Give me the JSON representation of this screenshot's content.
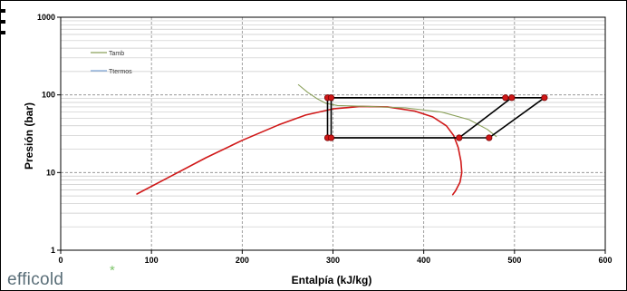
{
  "chart_data": {
    "type": "line",
    "title": "",
    "xlabel": "Entalpía  (kJ/kg)",
    "ylabel": "Presión  (bar)",
    "xlim": [
      0,
      600
    ],
    "ylim": [
      1,
      1000
    ],
    "yscale": "log",
    "x_ticks": [
      0,
      100,
      200,
      300,
      400,
      500,
      600
    ],
    "y_ticks": [
      1,
      10,
      100,
      1000
    ],
    "grid": true,
    "legend_position": "top-left",
    "legend": [
      {
        "name": "Tamb",
        "color": "#8aa05a"
      },
      {
        "name": "Ttermos",
        "color": "#7fa6d8"
      }
    ],
    "series": [
      {
        "name": "saturation-dome",
        "color": "#d01818",
        "x": [
          84,
          120,
          160,
          200,
          240,
          270,
          300,
          330,
          360,
          390,
          410,
          425,
          433,
          438,
          441,
          442,
          440,
          435,
          432
        ],
        "y": [
          5.3,
          8.8,
          15.5,
          26,
          41,
          55,
          66,
          71,
          70,
          62,
          52,
          40,
          30,
          21,
          14,
          10,
          7.5,
          5.8,
          5.2
        ]
      },
      {
        "name": "Tamb",
        "color": "#8aa05a",
        "x": [
          262,
          272,
          282,
          292,
          305,
          340,
          380,
          420,
          450,
          470,
          480
        ],
        "y": [
          135,
          108,
          90,
          78,
          73,
          71,
          68,
          60,
          48,
          36,
          29
        ]
      },
      {
        "name": "Ttermos",
        "color": "#7fa6d8",
        "x": [],
        "y": []
      },
      {
        "name": "cycle-outer",
        "color": "#000000",
        "x": [
          294,
          533,
          472,
          294,
          294
        ],
        "y": [
          92,
          92,
          28,
          28,
          92
        ]
      },
      {
        "name": "cycle-inner",
        "color": "#000000",
        "x": [
          298,
          497,
          439,
          298,
          298
        ],
        "y": [
          92,
          92,
          28,
          28,
          92
        ]
      },
      {
        "name": "cycle-link",
        "color": "#000000",
        "x": [
          490,
          497
        ],
        "y": [
          92,
          92
        ]
      }
    ],
    "points": [
      {
        "x": 294,
        "y": 92
      },
      {
        "x": 298,
        "y": 92
      },
      {
        "x": 490,
        "y": 92
      },
      {
        "x": 497,
        "y": 92
      },
      {
        "x": 533,
        "y": 92
      },
      {
        "x": 294,
        "y": 28
      },
      {
        "x": 298,
        "y": 28
      },
      {
        "x": 439,
        "y": 28
      },
      {
        "x": 472,
        "y": 28
      }
    ]
  },
  "logo": {
    "text": "efficold",
    "star": "*"
  }
}
